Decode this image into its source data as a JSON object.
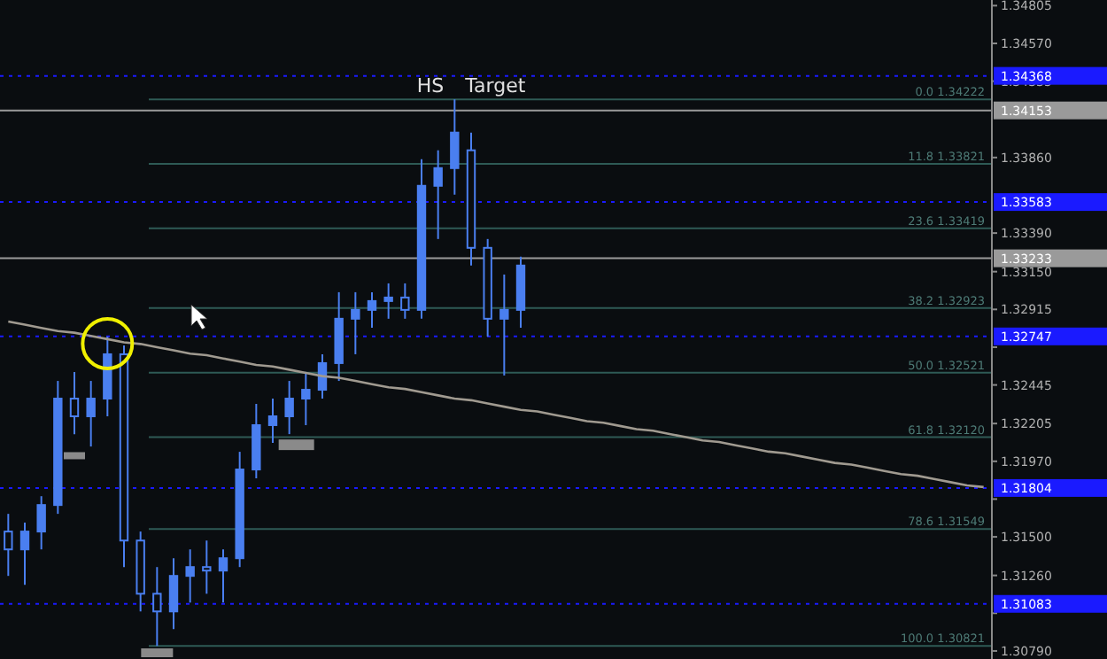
{
  "chart_data": {
    "type": "candlestick",
    "categories": [
      null,
      null,
      null,
      null,
      null,
      null,
      null,
      null,
      null,
      null,
      null,
      null,
      null,
      null,
      null,
      null,
      null,
      null,
      null,
      null,
      null,
      null,
      null,
      null,
      null,
      null,
      null,
      null,
      null,
      null,
      null,
      null,
      null,
      null,
      null,
      null,
      null,
      null,
      null,
      null,
      null,
      null,
      null,
      null,
      null,
      null,
      null,
      null,
      null,
      null,
      null,
      null,
      null,
      null,
      null,
      null,
      null,
      null,
      null,
      null
    ],
    "series": [
      {
        "color": "#4a7ff0",
        "ohlc": [
          [
            1.31533,
            1.31643,
            1.31257,
            1.31422
          ],
          [
            1.31422,
            1.31588,
            1.31202,
            1.31533
          ],
          [
            1.31533,
            1.31753,
            1.31422,
            1.31698
          ],
          [
            1.31698,
            1.3247,
            1.31643,
            1.3236
          ],
          [
            1.3236,
            1.32526,
            1.32139,
            1.3225
          ],
          [
            1.3225,
            1.3247,
            1.32062,
            1.3236
          ],
          [
            1.3236,
            1.32746,
            1.3225,
            1.32636
          ],
          [
            1.32636,
            1.32691,
            1.31312,
            1.31477
          ],
          [
            1.31477,
            1.31533,
            1.31036,
            1.31146
          ],
          [
            1.31146,
            1.31312,
            1.30821,
            1.31036
          ],
          [
            1.31036,
            1.31367,
            1.30926,
            1.31257
          ],
          [
            1.31257,
            1.31422,
            1.31091,
            1.31312
          ],
          [
            1.31312,
            1.31477,
            1.31146,
            1.3129
          ],
          [
            1.3129,
            1.31422,
            1.31091,
            1.31367
          ],
          [
            1.31367,
            1.32029,
            1.31312,
            1.31919
          ],
          [
            1.31919,
            1.32327,
            1.31864,
            1.32195
          ],
          [
            1.32195,
            1.3236,
            1.32084,
            1.3225
          ],
          [
            1.3225,
            1.3247,
            1.32139,
            1.3236
          ],
          [
            1.3236,
            1.32526,
            1.32195,
            1.32415
          ],
          [
            1.32415,
            1.32636,
            1.3236,
            1.32581
          ],
          [
            1.32581,
            1.33022,
            1.3247,
            1.32857
          ],
          [
            1.32857,
            1.33022,
            1.32636,
            1.32912
          ],
          [
            1.32912,
            1.33022,
            1.32801,
            1.32967
          ],
          [
            1.32967,
            1.33077,
            1.32857,
            1.32989
          ],
          [
            1.32989,
            1.33077,
            1.32857,
            1.32912
          ],
          [
            1.32912,
            1.3385,
            1.32857,
            1.33684
          ],
          [
            1.33684,
            1.33905,
            1.33353,
            1.33794
          ],
          [
            1.33794,
            1.34222,
            1.33629,
            1.34015
          ],
          [
            1.33905,
            1.34015,
            1.33188,
            1.33298
          ],
          [
            1.33298,
            1.33353,
            1.32746,
            1.32857
          ],
          [
            1.32857,
            1.33132,
            1.32504,
            1.32912
          ],
          [
            1.32912,
            1.33243,
            1.32801,
            1.33188
          ],
          null,
          null,
          null,
          null,
          null,
          null,
          null,
          null,
          null,
          null,
          null,
          null,
          null,
          null,
          null,
          null,
          null,
          null,
          null,
          null,
          null,
          null,
          null,
          null,
          null,
          null,
          null,
          null
        ]
      },
      {
        "type": "line",
        "color": "#a09a90",
        "values": [
          1.3284,
          1.3282,
          1.328,
          1.3278,
          1.3277,
          1.3275,
          1.3273,
          1.3271,
          1.327,
          1.3268,
          1.3266,
          1.3264,
          1.3263,
          1.3261,
          1.3259,
          1.3257,
          1.3256,
          1.3254,
          1.3252,
          1.325,
          1.3249,
          1.3247,
          1.3245,
          1.3243,
          1.3242,
          1.324,
          1.3238,
          1.3236,
          1.3235,
          1.3233,
          1.3231,
          1.3229,
          1.3228,
          1.3226,
          1.3224,
          1.3222,
          1.3221,
          1.3219,
          1.3217,
          1.3216,
          1.3214,
          1.3212,
          1.321,
          1.3209,
          1.3207,
          1.3205,
          1.3203,
          1.3202,
          1.32,
          1.3198,
          1.3196,
          1.3195,
          1.3193,
          1.3191,
          1.3189,
          1.3188,
          1.3186,
          1.3184,
          1.3182,
          1.3181
        ]
      }
    ],
    "ylim": [
      1.3074,
      1.3484
    ],
    "yticks": [
      1.34805,
      {
        "value": 1.3457,
        "label": "1.34570"
      },
      1.34335,
      {
        "value": 1.3386,
        "label": "1.33860"
      },
      {
        "value": 1.3339,
        "label": "1.33390"
      },
      {
        "value": 1.3315,
        "label": "1.33150"
      },
      1.32915,
      {
        "value": 1.3268,
        "label": null
      },
      1.32445,
      1.32205,
      {
        "value": 1.3197,
        "label": "1.31970"
      },
      {
        "value": 1.31735,
        "label": null
      },
      {
        "value": 1.315,
        "label": "1.31500"
      },
      {
        "value": 1.3126,
        "label": "1.31260"
      },
      {
        "value": 1.31025,
        "label": null
      },
      {
        "value": 1.3079,
        "label": "1.30790"
      }
    ],
    "grid": false,
    "ref_lines": [
      {
        "axis": "y",
        "value": 1.34222,
        "label": "0.0 1.34222",
        "color": "#2e5a55"
      },
      {
        "axis": "y",
        "value": 1.33821,
        "label": "11.8 1.33821",
        "color": "#2e5a55"
      },
      {
        "axis": "y",
        "value": 1.33419,
        "label": "23.6 1.33419",
        "color": "#2e5a55"
      },
      {
        "axis": "y",
        "value": 1.32923,
        "label": "38.2 1.32923",
        "color": "#2e5a55"
      },
      {
        "axis": "y",
        "value": 1.32521,
        "label": "50.0 1.32521",
        "color": "#2e5a55"
      },
      {
        "axis": "y",
        "value": 1.3212,
        "label": "61.8 1.32120",
        "color": "#2e5a55"
      },
      {
        "axis": "y",
        "value": 1.31549,
        "label": "78.6 1.31549",
        "color": "#2e5a55"
      },
      {
        "axis": "y",
        "value": 1.30821,
        "label": "100.0 1.30821",
        "color": "#2e5a55"
      },
      {
        "axis": "y",
        "value": 1.34153,
        "label": "1.34153",
        "color": "#9a9a9a",
        "line_style": "solid"
      },
      {
        "axis": "y",
        "value": 1.33233,
        "label": "1.33233",
        "color": "#9a9a9a",
        "line_style": "solid"
      },
      {
        "axis": "y",
        "value": 1.34368,
        "label": "1.34368",
        "color": "#1a1aff",
        "line_style": "dotted"
      },
      {
        "axis": "y",
        "value": 1.33583,
        "label": "1.33583",
        "color": "#1a1aff",
        "line_style": "dotted"
      },
      {
        "axis": "y",
        "value": 1.32747,
        "label": "1.32747",
        "color": "#1a1aff",
        "line_style": "dotted"
      },
      {
        "axis": "y",
        "value": 1.31804,
        "label": "1.31804",
        "color": "#1a1aff",
        "line_style": "dotted"
      },
      {
        "axis": "y",
        "value": 1.31083,
        "label": "1.31083",
        "color": "#1a1aff",
        "line_style": "dotted"
      }
    ],
    "annotations": [
      {
        "text": "HS",
        "y": 1.34268
      },
      {
        "text": "Target",
        "y": 1.34268
      }
    ]
  }
}
